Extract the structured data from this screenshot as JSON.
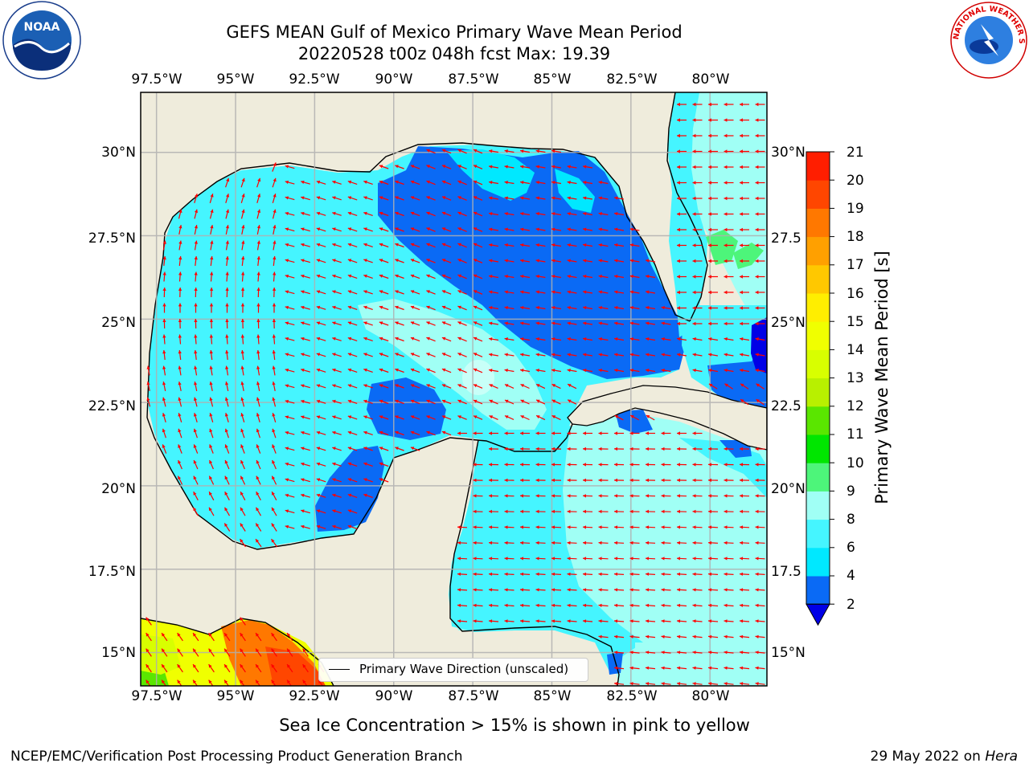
{
  "title": {
    "line1": "GEFS MEAN Gulf of Mexico Primary Wave Mean Period",
    "line2": "20220528 t00z 048h fcst   Max: 19.39"
  },
  "logos": {
    "left": {
      "icon": "noaa-logo",
      "text": "NOAA"
    },
    "right": {
      "icon": "national-weather-service-logo",
      "text": "NATIONAL WEATHER SERVICE"
    }
  },
  "map": {
    "lon_labels": [
      "97.5°W",
      "95°W",
      "92.5°W",
      "90°W",
      "87.5°W",
      "85°W",
      "82.5°W",
      "80°W"
    ],
    "lat_labels_left": [
      "30°N",
      "27.5°N",
      "25°N",
      "22.5°N",
      "20°N",
      "17.5°N",
      "15°N"
    ],
    "lat_labels_right": [
      "30°N",
      "27.5",
      "25°N",
      "22.5",
      "20°N",
      "17.5",
      "15°N"
    ],
    "extent": {
      "lon_min": -98.0,
      "lon_max": -78.2,
      "lat_min": 14.0,
      "lat_max": 31.8
    },
    "land_color": "#efecdc",
    "grid_color": "#b0b0b0",
    "arrow_color": "#ff0000",
    "legend_label": "Primary Wave Direction (unscaled)"
  },
  "colorbar": {
    "title": "Primary Wave Mean Period [s]",
    "levels": [
      "2",
      "4",
      "6",
      "8",
      "9",
      "10",
      "11",
      "12",
      "13",
      "14",
      "15",
      "16",
      "17",
      "18",
      "19",
      "20",
      "21"
    ],
    "colors": [
      "#0a6af5",
      "#00e8ff",
      "#45f5ff",
      "#a0fff5",
      "#4df57a",
      "#00e600",
      "#5ae600",
      "#b8f000",
      "#d8ff00",
      "#f0ff00",
      "#ffee00",
      "#ffc800",
      "#ffa000",
      "#ff7800",
      "#ff4600",
      "#ff1e00"
    ],
    "extend_low_color": "#0000e6"
  },
  "notes": {
    "ice": "Sea Ice Concentration > 15% is shown in pink to yellow",
    "footer_left": "NCEP/EMC/Verification Post Processing Product Generation Branch",
    "footer_date": "29 May 2022 on ",
    "footer_machine": "Hera"
  }
}
